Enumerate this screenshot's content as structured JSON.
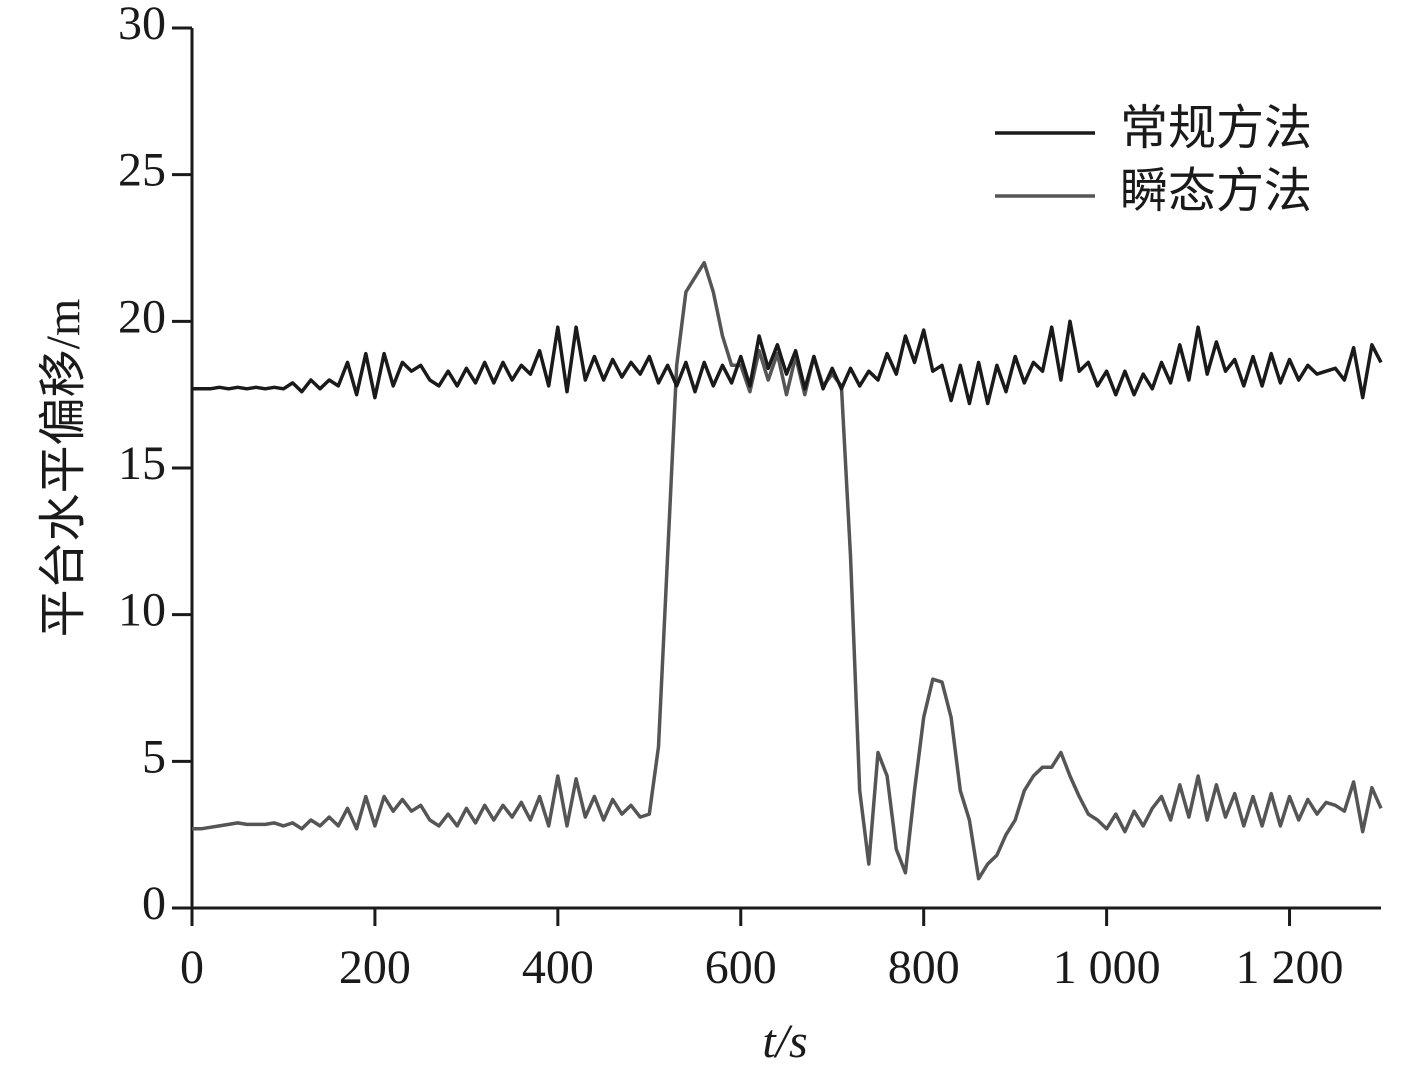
{
  "chart_data": {
    "type": "line",
    "x_label": "t/s",
    "y_label": "平台水平偏移/m",
    "xlim": [
      0,
      1300
    ],
    "ylim": [
      0,
      30
    ],
    "xticks": [
      0,
      200,
      400,
      600,
      800,
      {
        "value": 1000,
        "label": "1 000"
      },
      {
        "value": 1200,
        "label": "1 200"
      }
    ],
    "yticks": [
      0,
      5,
      10,
      15,
      20,
      25,
      30
    ],
    "legend": "upper right",
    "x": [
      0,
      10,
      20,
      30,
      40,
      50,
      60,
      70,
      80,
      90,
      100,
      110,
      120,
      130,
      140,
      150,
      160,
      170,
      180,
      190,
      200,
      210,
      220,
      230,
      240,
      250,
      260,
      270,
      280,
      290,
      300,
      310,
      320,
      330,
      340,
      350,
      360,
      370,
      380,
      390,
      400,
      410,
      420,
      430,
      440,
      450,
      460,
      470,
      480,
      490,
      500,
      510,
      520,
      530,
      540,
      550,
      560,
      570,
      580,
      590,
      600,
      610,
      620,
      630,
      640,
      650,
      660,
      670,
      680,
      690,
      700,
      710,
      720,
      730,
      740,
      750,
      760,
      770,
      780,
      790,
      800,
      810,
      820,
      830,
      840,
      850,
      860,
      870,
      880,
      890,
      900,
      910,
      920,
      930,
      940,
      950,
      960,
      970,
      980,
      990,
      1000,
      1010,
      1020,
      1030,
      1040,
      1050,
      1060,
      1070,
      1080,
      1090,
      1100,
      1110,
      1120,
      1130,
      1140,
      1150,
      1160,
      1170,
      1180,
      1190,
      1200,
      1210,
      1220,
      1230,
      1240,
      1250,
      1260,
      1270,
      1280,
      1290,
      1300
    ],
    "series": [
      {
        "name": "常规方法",
        "color": "#1a1a1a",
        "values": [
          17.7,
          17.7,
          17.7,
          17.75,
          17.7,
          17.75,
          17.7,
          17.75,
          17.7,
          17.75,
          17.7,
          17.9,
          17.6,
          18.0,
          17.7,
          18.0,
          17.8,
          18.6,
          17.5,
          18.9,
          17.4,
          18.9,
          17.8,
          18.6,
          18.3,
          18.5,
          18.0,
          17.8,
          18.3,
          17.8,
          18.4,
          17.9,
          18.6,
          17.9,
          18.6,
          18.0,
          18.5,
          18.2,
          19.0,
          17.8,
          19.8,
          17.6,
          19.8,
          18.0,
          18.8,
          18.0,
          18.7,
          18.1,
          18.6,
          18.2,
          18.8,
          17.9,
          18.5,
          17.8,
          18.6,
          17.6,
          18.6,
          17.8,
          18.5,
          17.9,
          18.8,
          17.8,
          19.5,
          18.4,
          19.2,
          18.2,
          19.0,
          17.7,
          18.8,
          17.7,
          18.4,
          17.7,
          18.4,
          17.8,
          18.3,
          18.0,
          18.9,
          18.2,
          19.5,
          18.6,
          19.7,
          18.3,
          18.5,
          17.3,
          18.5,
          17.2,
          18.6,
          17.2,
          18.5,
          17.6,
          18.8,
          17.9,
          18.6,
          18.3,
          19.8,
          18.0,
          20.0,
          18.3,
          18.6,
          17.8,
          18.3,
          17.5,
          18.3,
          17.5,
          18.2,
          17.7,
          18.6,
          17.9,
          19.2,
          18.0,
          19.8,
          18.2,
          19.3,
          18.3,
          18.7,
          17.8,
          18.8,
          17.8,
          18.9,
          17.9,
          18.7,
          18.0,
          18.5,
          18.2,
          18.3,
          18.4,
          18.0,
          19.1,
          17.4,
          19.2,
          18.6
        ]
      },
      {
        "name": "瞬态方法",
        "color": "#555555",
        "values": [
          2.7,
          2.7,
          2.75,
          2.8,
          2.85,
          2.9,
          2.85,
          2.85,
          2.85,
          2.9,
          2.8,
          2.9,
          2.7,
          3.0,
          2.8,
          3.1,
          2.8,
          3.4,
          2.7,
          3.8,
          2.8,
          3.8,
          3.3,
          3.7,
          3.3,
          3.5,
          3.0,
          2.8,
          3.2,
          2.8,
          3.4,
          2.9,
          3.5,
          3.0,
          3.5,
          3.1,
          3.6,
          3.0,
          3.8,
          2.8,
          4.5,
          2.8,
          4.4,
          3.1,
          3.8,
          3.0,
          3.7,
          3.2,
          3.5,
          3.1,
          3.2,
          5.5,
          12,
          18.5,
          21,
          21.5,
          22,
          21,
          19.5,
          18.5,
          18.5,
          17.6,
          19.0,
          18.0,
          18.9,
          17.5,
          18.8,
          17.5,
          18.8,
          17.8,
          18.2,
          17.8,
          12,
          4,
          1.5,
          5.3,
          4.5,
          2,
          1.2,
          4,
          6.5,
          7.8,
          7.7,
          6.5,
          4,
          3,
          1,
          1.5,
          1.8,
          2.5,
          3,
          4,
          4.5,
          4.8,
          4.8,
          5.3,
          4.5,
          3.8,
          3.2,
          3.0,
          2.7,
          3.2,
          2.6,
          3.3,
          2.8,
          3.4,
          3.8,
          3.0,
          4.2,
          3.1,
          4.5,
          3.0,
          4.2,
          3.1,
          3.9,
          2.8,
          3.8,
          2.8,
          3.9,
          2.8,
          3.8,
          3.0,
          3.7,
          3.2,
          3.6,
          3.5,
          3.3,
          4.3,
          2.6,
          4.1,
          3.4
        ]
      }
    ]
  }
}
